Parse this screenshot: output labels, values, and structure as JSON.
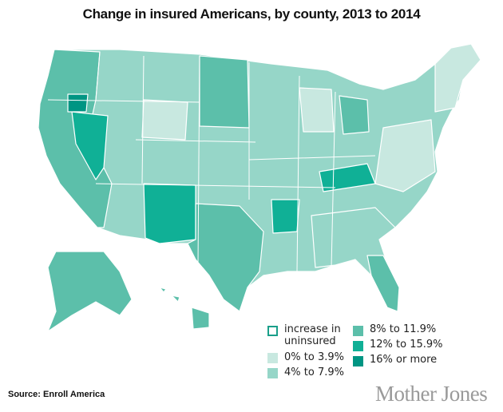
{
  "title": "Change in insured Americans, by county, 2013 to 2014",
  "legend": [
    {
      "label": "increase in uninsured",
      "color": "#ffffff",
      "border": "#1a9f8a"
    },
    {
      "label": "0% to 3.9%",
      "color": "#c8e8e0"
    },
    {
      "label": "4% to 7.9%",
      "color": "#96d6c8"
    },
    {
      "label": "8% to 11.9%",
      "color": "#5cbfaa"
    },
    {
      "label": "12% to 15.9%",
      "color": "#10b096"
    },
    {
      "label": "16% or more",
      "color": "#009583"
    }
  ],
  "source": "Source: Enroll America",
  "logo": "Mother Jones"
}
